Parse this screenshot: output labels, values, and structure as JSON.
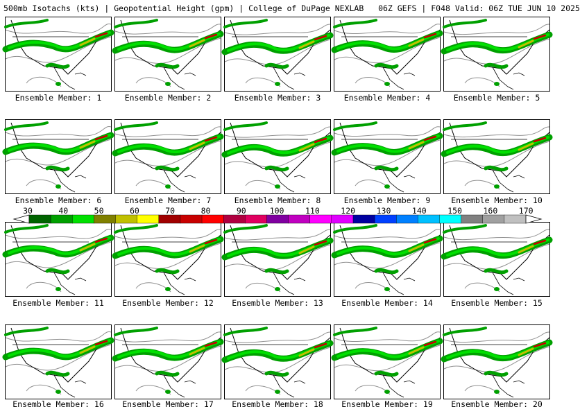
{
  "header": {
    "product": "500mb Isotachs (kts) | Geopotential Height (gpm) | College of DuPage NEXLAB",
    "run": "06Z GEFS | F048 Valid: 06Z TUE JUN 10 2025"
  },
  "colorbar": {
    "ticks": [
      "30",
      "40",
      "50",
      "60",
      "70",
      "80",
      "90",
      "100",
      "110",
      "120",
      "130",
      "140",
      "150",
      "160",
      "170"
    ],
    "colors": [
      "#006400",
      "#00a000",
      "#00e000",
      "#808000",
      "#c0c000",
      "#ffff00",
      "#a00000",
      "#c80000",
      "#ff0000",
      "#b00040",
      "#e00060",
      "#8000a0",
      "#c000c0",
      "#ff00ff",
      "#e000ff",
      "#0000a0",
      "#0040ff",
      "#0080ff",
      "#00c0ff",
      "#00ffff",
      "#808080",
      "#a0a0a0",
      "#c0c0c0"
    ]
  },
  "members": [
    {
      "caption": "Ensemble Member: 1"
    },
    {
      "caption": "Ensemble Member: 2"
    },
    {
      "caption": "Ensemble Member: 3"
    },
    {
      "caption": "Ensemble Member: 4"
    },
    {
      "caption": "Ensemble Member: 5"
    },
    {
      "caption": "Ensemble Member: 6"
    },
    {
      "caption": "Ensemble Member: 7"
    },
    {
      "caption": "Ensemble Member: 8"
    },
    {
      "caption": "Ensemble Member: 9"
    },
    {
      "caption": "Ensemble Member: 10"
    },
    {
      "caption": "Ensemble Member: 11"
    },
    {
      "caption": "Ensemble Member: 12"
    },
    {
      "caption": "Ensemble Member: 13"
    },
    {
      "caption": "Ensemble Member: 14"
    },
    {
      "caption": "Ensemble Member: 15"
    },
    {
      "caption": "Ensemble Member: 16"
    },
    {
      "caption": "Ensemble Member: 17"
    },
    {
      "caption": "Ensemble Member: 18"
    },
    {
      "caption": "Ensemble Member: 19"
    },
    {
      "caption": "Ensemble Member: 20"
    }
  ]
}
